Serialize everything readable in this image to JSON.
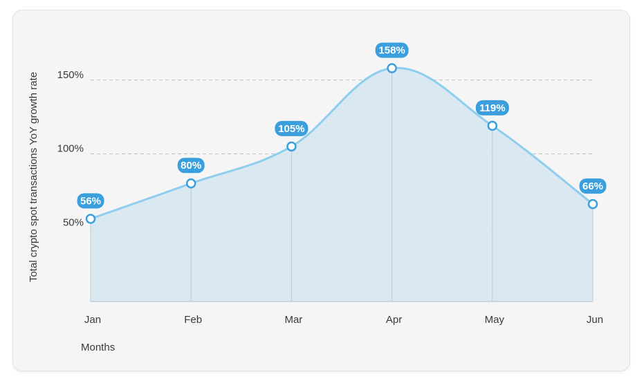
{
  "chart_data": {
    "type": "area",
    "categories": [
      "Jan",
      "Feb",
      "Mar",
      "Apr",
      "May",
      "Jun"
    ],
    "values": [
      56,
      80,
      105,
      158,
      119,
      66
    ],
    "data_labels": [
      "56%",
      "80%",
      "105%",
      "158%",
      "119%",
      "66%"
    ],
    "y_ticks": [
      {
        "value": 50,
        "label": "50%"
      },
      {
        "value": 100,
        "label": "100%"
      },
      {
        "value": 150,
        "label": "150%"
      }
    ],
    "ylim": [
      0,
      150
    ],
    "xlabel": "Months",
    "ylabel": "Total crypto spot transactions YoY growth rate",
    "grid": "horizontal dashed",
    "colors": {
      "line": "#8fcdee",
      "fill": "#d6e7f1",
      "badge": "#3a9fdc",
      "grid": "#bfbfbf",
      "axis": "#c8d6df"
    }
  }
}
